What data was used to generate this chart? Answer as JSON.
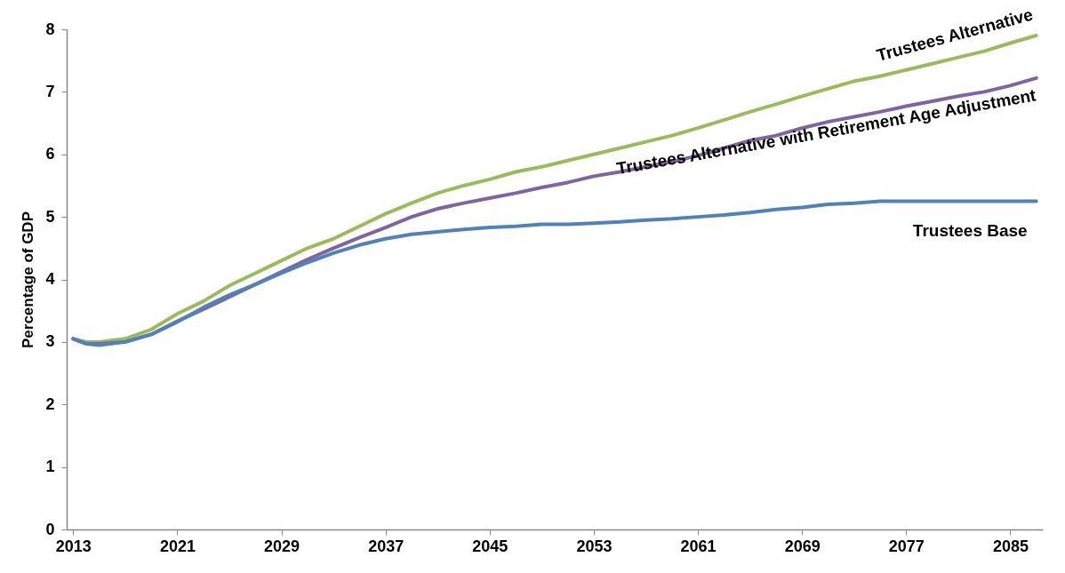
{
  "chart_data": {
    "type": "line",
    "ylabel": "Percentage of GDP",
    "x": [
      2013,
      2014,
      2015,
      2017,
      2019,
      2021,
      2023,
      2025,
      2027,
      2029,
      2031,
      2033,
      2035,
      2037,
      2039,
      2041,
      2043,
      2045,
      2047,
      2049,
      2051,
      2053,
      2055,
      2057,
      2059,
      2061,
      2063,
      2065,
      2067,
      2069,
      2071,
      2073,
      2075,
      2077,
      2079,
      2081,
      2083,
      2085,
      2087
    ],
    "series": [
      {
        "name": "Trustees Alternative",
        "color": "#9bbb59",
        "values": [
          3.05,
          3.0,
          3.0,
          3.05,
          3.2,
          3.45,
          3.65,
          3.9,
          4.1,
          4.3,
          4.5,
          4.65,
          4.85,
          5.05,
          5.22,
          5.38,
          5.5,
          5.6,
          5.72,
          5.8,
          5.9,
          6.0,
          6.1,
          6.2,
          6.3,
          6.42,
          6.55,
          6.68,
          6.8,
          6.93,
          7.05,
          7.17,
          7.25,
          7.35,
          7.45,
          7.55,
          7.65,
          7.78,
          7.9
        ]
      },
      {
        "name": "Trustees Alternative with Retirement Age Adjustment",
        "color": "#8064a2",
        "values": [
          3.05,
          2.97,
          2.97,
          3.0,
          3.12,
          3.33,
          3.52,
          3.72,
          3.92,
          4.12,
          4.32,
          4.5,
          4.67,
          4.83,
          5.0,
          5.13,
          5.22,
          5.3,
          5.38,
          5.47,
          5.55,
          5.65,
          5.72,
          5.8,
          5.88,
          5.98,
          6.1,
          6.22,
          6.3,
          6.42,
          6.52,
          6.6,
          6.68,
          6.77,
          6.85,
          6.93,
          7.0,
          7.1,
          7.22
        ]
      },
      {
        "name": "Trustees Base",
        "color": "#4f81bd",
        "values": [
          3.05,
          2.97,
          2.95,
          3.0,
          3.12,
          3.32,
          3.55,
          3.75,
          3.92,
          4.1,
          4.27,
          4.42,
          4.55,
          4.65,
          4.72,
          4.76,
          4.8,
          4.83,
          4.85,
          4.88,
          4.88,
          4.9,
          4.92,
          4.95,
          4.97,
          5.0,
          5.03,
          5.07,
          5.12,
          5.15,
          5.2,
          5.22,
          5.25,
          5.25,
          5.25,
          5.25,
          5.25,
          5.25,
          5.25
        ]
      }
    ],
    "xlim": [
      2012.5,
      2087.5
    ],
    "xticks": [
      2013,
      2021,
      2029,
      2037,
      2045,
      2053,
      2061,
      2069,
      2077,
      2085
    ],
    "ylim": [
      0,
      8
    ],
    "yticks": [
      0,
      1,
      2,
      3,
      4,
      5,
      6,
      7,
      8
    ],
    "grid": false,
    "legend": false,
    "marker": "none",
    "line_style": "solid"
  }
}
